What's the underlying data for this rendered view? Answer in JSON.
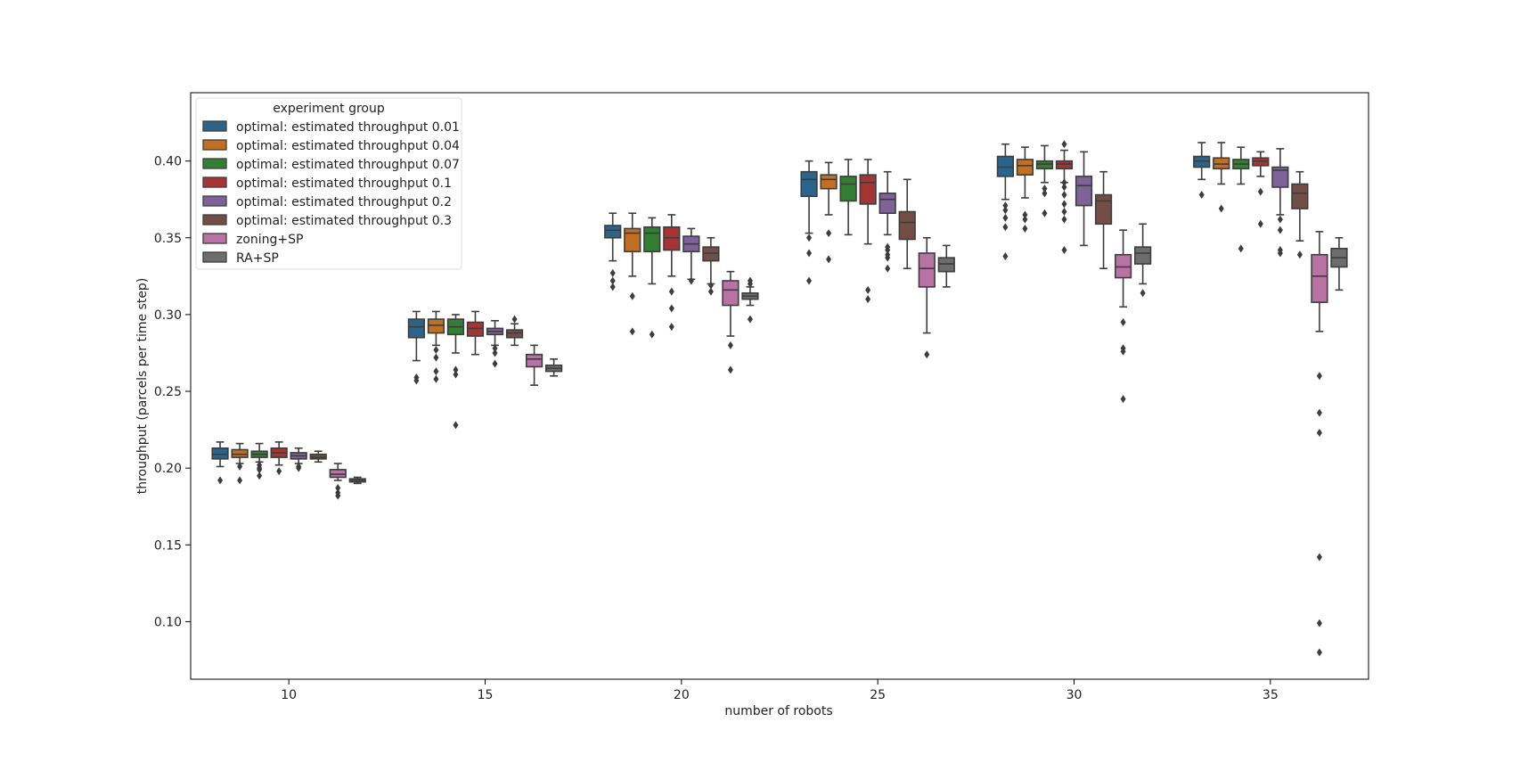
{
  "chart_data": {
    "type": "box",
    "title": "",
    "xlabel": "number of robots",
    "ylabel": "throughput (parcels per time step)",
    "categories": [
      "10",
      "15",
      "20",
      "25",
      "30",
      "35"
    ],
    "yticks": [
      "0.10",
      "0.15",
      "0.20",
      "0.25",
      "0.30",
      "0.35",
      "0.40"
    ],
    "ylim": [
      0.0625,
      0.4445
    ],
    "legend": {
      "title": "experiment group",
      "placement": "top-left"
    },
    "series": [
      {
        "name": "optimal: estimated throughput 0.01",
        "color": "#3274a1",
        "boxes": [
          {
            "wl": 0.201,
            "q1": 0.206,
            "med": 0.209,
            "q3": 0.213,
            "wh": 0.217,
            "out": [
              0.192
            ]
          },
          {
            "wl": 0.27,
            "q1": 0.285,
            "med": 0.292,
            "q3": 0.297,
            "wh": 0.302,
            "out": [
              0.257,
              0.259
            ]
          },
          {
            "wl": 0.335,
            "q1": 0.35,
            "med": 0.355,
            "q3": 0.358,
            "wh": 0.366,
            "out": [
              0.318,
              0.322,
              0.327
            ]
          },
          {
            "wl": 0.353,
            "q1": 0.377,
            "med": 0.388,
            "q3": 0.393,
            "wh": 0.4,
            "out": [
              0.322,
              0.34,
              0.35
            ]
          },
          {
            "wl": 0.375,
            "q1": 0.39,
            "med": 0.396,
            "q3": 0.403,
            "wh": 0.411,
            "out": [
              0.338,
              0.357,
              0.363,
              0.368,
              0.371
            ]
          },
          {
            "wl": 0.388,
            "q1": 0.396,
            "med": 0.4,
            "q3": 0.403,
            "wh": 0.412,
            "out": [
              0.378
            ]
          }
        ]
      },
      {
        "name": "optimal: estimated throughput 0.04",
        "color": "#e1812c",
        "boxes": [
          {
            "wl": 0.203,
            "q1": 0.207,
            "med": 0.209,
            "q3": 0.212,
            "wh": 0.216,
            "out": [
              0.192,
              0.201
            ]
          },
          {
            "wl": 0.28,
            "q1": 0.288,
            "med": 0.293,
            "q3": 0.297,
            "wh": 0.302,
            "out": [
              0.258,
              0.263,
              0.272,
              0.277
            ]
          },
          {
            "wl": 0.325,
            "q1": 0.341,
            "med": 0.353,
            "q3": 0.356,
            "wh": 0.366,
            "out": [
              0.289,
              0.312
            ]
          },
          {
            "wl": 0.365,
            "q1": 0.382,
            "med": 0.388,
            "q3": 0.391,
            "wh": 0.399,
            "out": [
              0.336,
              0.353
            ]
          },
          {
            "wl": 0.376,
            "q1": 0.391,
            "med": 0.397,
            "q3": 0.401,
            "wh": 0.409,
            "out": [
              0.356,
              0.362,
              0.365
            ]
          },
          {
            "wl": 0.385,
            "q1": 0.395,
            "med": 0.398,
            "q3": 0.402,
            "wh": 0.412,
            "out": [
              0.369
            ]
          }
        ]
      },
      {
        "name": "optimal: estimated throughput 0.07",
        "color": "#3a923a",
        "boxes": [
          {
            "wl": 0.204,
            "q1": 0.207,
            "med": 0.209,
            "q3": 0.211,
            "wh": 0.216,
            "out": [
              0.195,
              0.199,
              0.2,
              0.202
            ]
          },
          {
            "wl": 0.275,
            "q1": 0.287,
            "med": 0.292,
            "q3": 0.297,
            "wh": 0.3,
            "out": [
              0.228,
              0.261,
              0.264
            ]
          },
          {
            "wl": 0.32,
            "q1": 0.341,
            "med": 0.353,
            "q3": 0.357,
            "wh": 0.363,
            "out": [
              0.287
            ]
          },
          {
            "wl": 0.352,
            "q1": 0.374,
            "med": 0.385,
            "q3": 0.39,
            "wh": 0.401,
            "out": []
          },
          {
            "wl": 0.386,
            "q1": 0.395,
            "med": 0.398,
            "q3": 0.4,
            "wh": 0.41,
            "out": [
              0.366,
              0.379,
              0.382
            ]
          },
          {
            "wl": 0.385,
            "q1": 0.395,
            "med": 0.398,
            "q3": 0.401,
            "wh": 0.409,
            "out": [
              0.343
            ]
          }
        ]
      },
      {
        "name": "optimal: estimated throughput 0.1",
        "color": "#c03d3e",
        "boxes": [
          {
            "wl": 0.202,
            "q1": 0.207,
            "med": 0.21,
            "q3": 0.213,
            "wh": 0.217,
            "out": [
              0.198
            ]
          },
          {
            "wl": 0.274,
            "q1": 0.286,
            "med": 0.291,
            "q3": 0.295,
            "wh": 0.302,
            "out": []
          },
          {
            "wl": 0.325,
            "q1": 0.342,
            "med": 0.35,
            "q3": 0.357,
            "wh": 0.365,
            "out": [
              0.292,
              0.304,
              0.315
            ]
          },
          {
            "wl": 0.346,
            "q1": 0.372,
            "med": 0.386,
            "q3": 0.391,
            "wh": 0.401,
            "out": [
              0.31,
              0.316
            ]
          },
          {
            "wl": 0.386,
            "q1": 0.395,
            "med": 0.398,
            "q3": 0.4,
            "wh": 0.407,
            "out": [
              0.342,
              0.362,
              0.367,
              0.372,
              0.378,
              0.383,
              0.386,
              0.411
            ]
          },
          {
            "wl": 0.39,
            "q1": 0.397,
            "med": 0.4,
            "q3": 0.402,
            "wh": 0.406,
            "out": [
              0.359,
              0.38
            ]
          }
        ]
      },
      {
        "name": "optimal: estimated throughput 0.2",
        "color": "#9372b2",
        "boxes": [
          {
            "wl": 0.203,
            "q1": 0.206,
            "med": 0.208,
            "q3": 0.21,
            "wh": 0.213,
            "out": [
              0.2,
              0.201
            ]
          },
          {
            "wl": 0.28,
            "q1": 0.287,
            "med": 0.289,
            "q3": 0.291,
            "wh": 0.296,
            "out": [
              0.268,
              0.275,
              0.278
            ]
          },
          {
            "wl": 0.323,
            "q1": 0.341,
            "med": 0.346,
            "q3": 0.351,
            "wh": 0.356,
            "out": [
              0.322
            ]
          },
          {
            "wl": 0.352,
            "q1": 0.366,
            "med": 0.375,
            "q3": 0.379,
            "wh": 0.393,
            "out": [
              0.33,
              0.337,
              0.339,
              0.342,
              0.344
            ]
          },
          {
            "wl": 0.345,
            "q1": 0.371,
            "med": 0.384,
            "q3": 0.39,
            "wh": 0.406,
            "out": []
          },
          {
            "wl": 0.365,
            "q1": 0.383,
            "med": 0.394,
            "q3": 0.396,
            "wh": 0.408,
            "out": [
              0.34,
              0.342,
              0.355,
              0.362
            ]
          }
        ]
      },
      {
        "name": "optimal: estimated throughput 0.3",
        "color": "#845b53",
        "boxes": [
          {
            "wl": 0.204,
            "q1": 0.206,
            "med": 0.207,
            "q3": 0.209,
            "wh": 0.211,
            "out": []
          },
          {
            "wl": 0.28,
            "q1": 0.285,
            "med": 0.288,
            "q3": 0.29,
            "wh": 0.294,
            "out": [
              0.297
            ]
          },
          {
            "wl": 0.32,
            "q1": 0.335,
            "med": 0.34,
            "q3": 0.344,
            "wh": 0.35,
            "out": [
              0.315,
              0.319
            ]
          },
          {
            "wl": 0.33,
            "q1": 0.349,
            "med": 0.36,
            "q3": 0.367,
            "wh": 0.388,
            "out": []
          },
          {
            "wl": 0.33,
            "q1": 0.359,
            "med": 0.374,
            "q3": 0.378,
            "wh": 0.393,
            "out": []
          },
          {
            "wl": 0.348,
            "q1": 0.369,
            "med": 0.379,
            "q3": 0.385,
            "wh": 0.393,
            "out": [
              0.339
            ]
          }
        ]
      },
      {
        "name": "zoning+SP",
        "color": "#d684bd",
        "boxes": [
          {
            "wl": 0.192,
            "q1": 0.194,
            "med": 0.196,
            "q3": 0.199,
            "wh": 0.203,
            "out": [
              0.182,
              0.184,
              0.187
            ]
          },
          {
            "wl": 0.254,
            "q1": 0.266,
            "med": 0.271,
            "q3": 0.274,
            "wh": 0.28,
            "out": []
          },
          {
            "wl": 0.286,
            "q1": 0.306,
            "med": 0.316,
            "q3": 0.322,
            "wh": 0.328,
            "out": [
              0.264,
              0.28
            ]
          },
          {
            "wl": 0.288,
            "q1": 0.318,
            "med": 0.33,
            "q3": 0.34,
            "wh": 0.35,
            "out": [
              0.274
            ]
          },
          {
            "wl": 0.305,
            "q1": 0.324,
            "med": 0.331,
            "q3": 0.339,
            "wh": 0.355,
            "out": [
              0.245,
              0.276,
              0.278,
              0.295
            ]
          },
          {
            "wl": 0.289,
            "q1": 0.308,
            "med": 0.325,
            "q3": 0.339,
            "wh": 0.354,
            "out": [
              0.08,
              0.099,
              0.142,
              0.223,
              0.236,
              0.26
            ]
          }
        ]
      },
      {
        "name": "RA+SP",
        "color": "#7f7f7f",
        "boxes": [
          {
            "wl": 0.19,
            "q1": 0.191,
            "med": 0.192,
            "q3": 0.193,
            "wh": 0.194,
            "out": []
          },
          {
            "wl": 0.26,
            "q1": 0.263,
            "med": 0.265,
            "q3": 0.267,
            "wh": 0.271,
            "out": []
          },
          {
            "wl": 0.306,
            "q1": 0.31,
            "med": 0.312,
            "q3": 0.314,
            "wh": 0.318,
            "out": [
              0.297,
              0.32,
              0.322
            ]
          },
          {
            "wl": 0.318,
            "q1": 0.328,
            "med": 0.333,
            "q3": 0.337,
            "wh": 0.345,
            "out": []
          },
          {
            "wl": 0.32,
            "q1": 0.333,
            "med": 0.34,
            "q3": 0.344,
            "wh": 0.359,
            "out": [
              0.314
            ]
          },
          {
            "wl": 0.316,
            "q1": 0.331,
            "med": 0.337,
            "q3": 0.343,
            "wh": 0.35,
            "out": []
          }
        ]
      }
    ]
  }
}
